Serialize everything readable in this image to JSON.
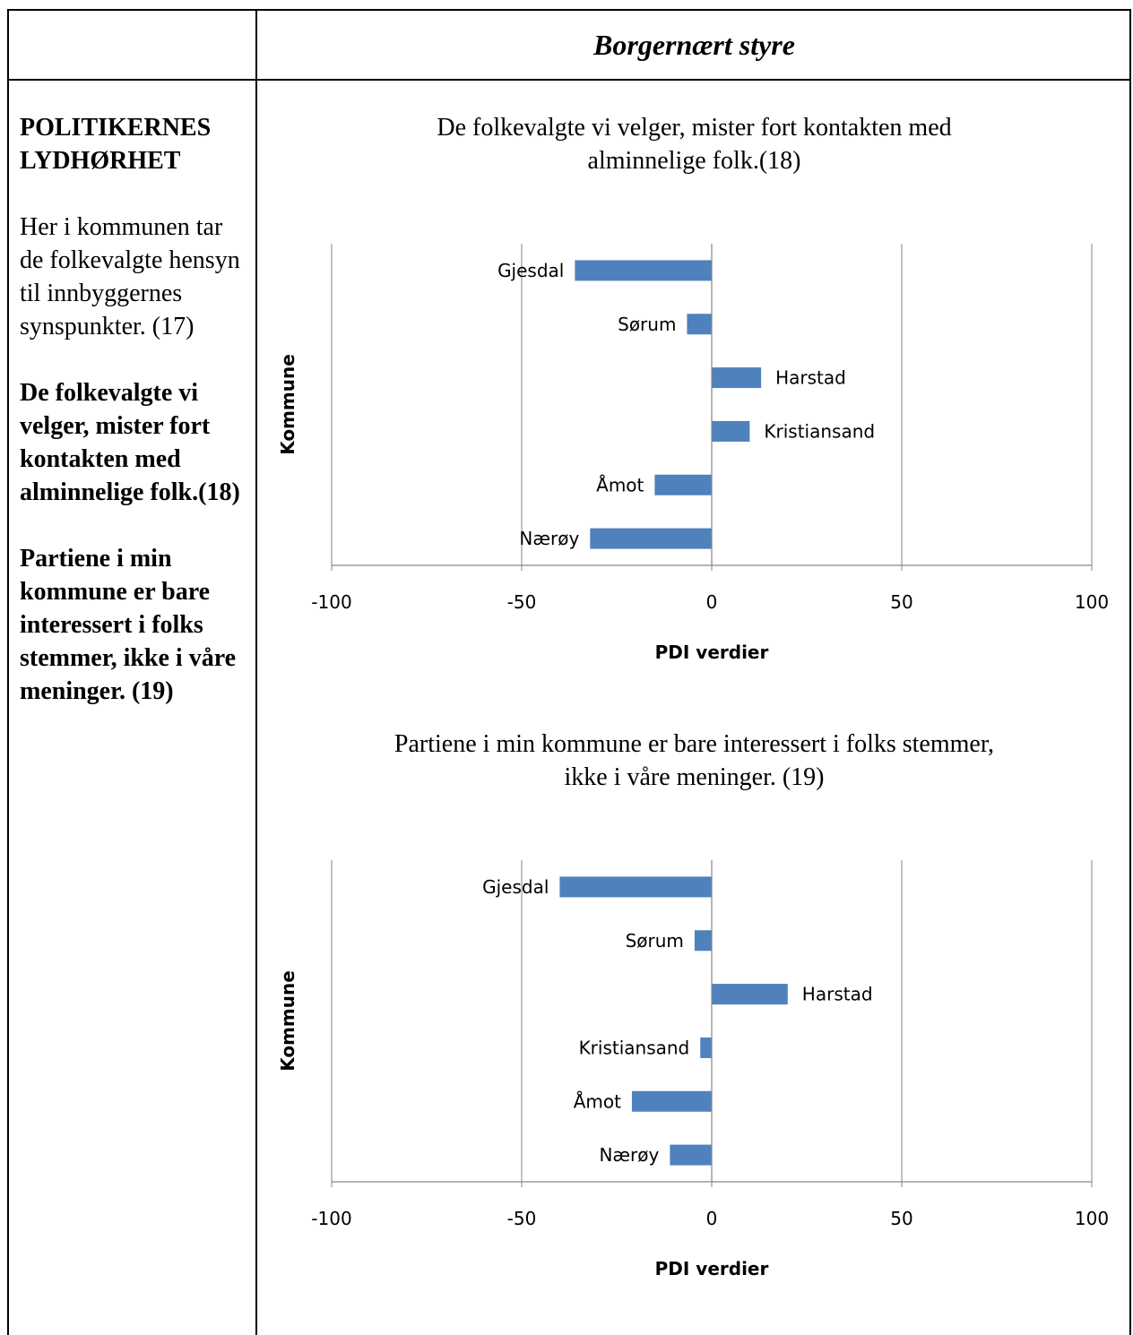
{
  "header": {
    "title": "Borgernært styre"
  },
  "left_column": {
    "section_heading": "POLITIKERNES LYDHØRHET",
    "q17": "Her i kommunen tar de folkevalgte hensyn til innbyggernes synspunkter. (17)",
    "q18": "De folkevalgte vi velger, mister fort kontakten med alminnelige folk.(18)",
    "q19": "Partiene i min kommune er bare interessert i folks stemmer, ikke i våre meninger. (19)"
  },
  "chart_data": [
    {
      "type": "bar",
      "orientation": "horizontal",
      "title_lines": [
        "De folkevalgte vi velger, mister fort kontakten med",
        "alminnelige folk.(18)"
      ],
      "xlabel": "PDI verdier",
      "ylabel": "Kommune",
      "categories": [
        "Gjesdal",
        "Sørum",
        "Harstad",
        "Kristiansand",
        "Åmot",
        "Nærøy"
      ],
      "values": [
        -36,
        -6.5,
        13,
        10,
        -15,
        -32
      ],
      "xlim": [
        -100,
        100
      ],
      "xticks": [
        -100,
        -50,
        0,
        50,
        100
      ],
      "bar_color": "#4F81BD",
      "grid": "vertical"
    },
    {
      "type": "bar",
      "orientation": "horizontal",
      "title_lines": [
        "Partiene i min kommune er bare interessert i folks stemmer,",
        "ikke i våre meninger. (19)"
      ],
      "xlabel": "PDI verdier",
      "ylabel": "Kommune",
      "categories": [
        "Gjesdal",
        "Sørum",
        "Harstad",
        "Kristiansand",
        "Åmot",
        "Nærøy"
      ],
      "values": [
        -40,
        -4.5,
        20,
        -3,
        -21,
        -11
      ],
      "xlim": [
        -100,
        100
      ],
      "xticks": [
        -100,
        -50,
        0,
        50,
        100
      ],
      "bar_color": "#4F81BD",
      "grid": "vertical"
    }
  ]
}
